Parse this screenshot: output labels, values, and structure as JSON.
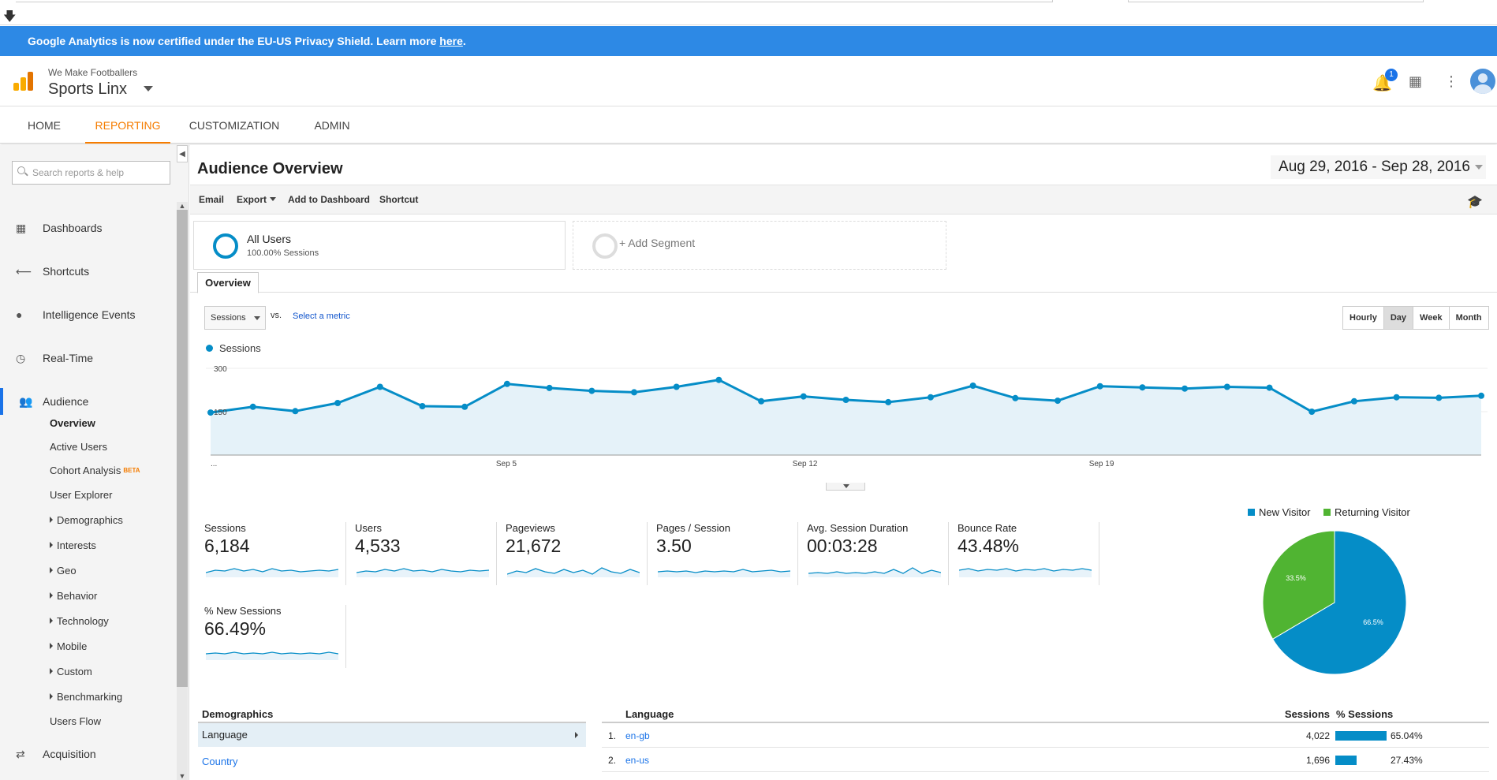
{
  "banner": {
    "text": "Google Analytics is now certified under the EU-US Privacy Shield. Learn more ",
    "link": "here",
    "suffix": "."
  },
  "account": {
    "org": "We Make Footballers",
    "property": "Sports Linx",
    "notification_count": "1"
  },
  "nav": [
    "HOME",
    "REPORTING",
    "CUSTOMIZATION",
    "ADMIN"
  ],
  "sidebar": {
    "search_placeholder": "Search reports & help",
    "items": [
      "Dashboards",
      "Shortcuts",
      "Intelligence Events",
      "Real-Time",
      "Audience",
      "Acquisition"
    ],
    "audience_sub": [
      "Overview",
      "Active Users",
      "Cohort Analysis",
      "User Explorer",
      "Demographics",
      "Interests",
      "Geo",
      "Behavior",
      "Technology",
      "Mobile",
      "Custom",
      "Benchmarking",
      "Users Flow"
    ],
    "beta_label": "BETA"
  },
  "page": {
    "title": "Audience Overview",
    "date_start": "Aug 29, 2016",
    "date_sep": " - ",
    "date_end": "Sep 28, 2016"
  },
  "toolbar": [
    "Email",
    "Export",
    "Add to Dashboard",
    "Shortcut"
  ],
  "segments": {
    "all_name": "All Users",
    "all_sub": "100.00% Sessions",
    "add_label": "+ Add Segment"
  },
  "tab": "Overview",
  "metric_selector": {
    "selected": "Sessions",
    "vs": "vs.",
    "select_label": "Select a metric"
  },
  "granularity": {
    "options": [
      "Hourly",
      "Day",
      "Week",
      "Month"
    ],
    "selected": "Day"
  },
  "chart_data": {
    "type": "area",
    "series": [
      {
        "name": "Sessions",
        "values": [
          147,
          167,
          152,
          180,
          236,
          169,
          167,
          246,
          232,
          222,
          217,
          236,
          260,
          186,
          203,
          191,
          183,
          200,
          240,
          197,
          188,
          238,
          234,
          230,
          236,
          233,
          150,
          186,
          200,
          198,
          205
        ]
      }
    ],
    "x_tick_labels": [
      "...",
      "Sep 5",
      "Sep 12",
      "Sep 19"
    ],
    "y_tick_labels": [
      "300",
      "150"
    ],
    "ylim": [
      0,
      300
    ],
    "grid": true,
    "color": "#058dc7"
  },
  "scorecards": [
    {
      "label": "Sessions",
      "value": "6,184"
    },
    {
      "label": "Users",
      "value": "4,533"
    },
    {
      "label": "Pageviews",
      "value": "21,672"
    },
    {
      "label": "Pages / Session",
      "value": "3.50"
    },
    {
      "label": "Avg. Session Duration",
      "value": "00:03:28"
    },
    {
      "label": "Bounce Rate",
      "value": "43.48%"
    },
    {
      "label": "% New Sessions",
      "value": "66.49%"
    }
  ],
  "pie": {
    "slices": [
      {
        "name": "New Visitor",
        "value": 66.5,
        "label": "66.5%",
        "color": "#058dc7"
      },
      {
        "name": "Returning Visitor",
        "value": 33.5,
        "label": "33.5%",
        "color": "#50b432"
      }
    ]
  },
  "demographics": {
    "title": "Demographics",
    "items": [
      "Language",
      "Country"
    ]
  },
  "language_table": {
    "headers": [
      "Language",
      "Sessions",
      "% Sessions"
    ],
    "rows": [
      {
        "rank": "1.",
        "code": "en-gb",
        "sessions": "4,022",
        "pct": "65.04%",
        "share": 0.6504
      },
      {
        "rank": "2.",
        "code": "en-us",
        "sessions": "1,696",
        "pct": "27.43%",
        "share": 0.2743
      }
    ]
  }
}
